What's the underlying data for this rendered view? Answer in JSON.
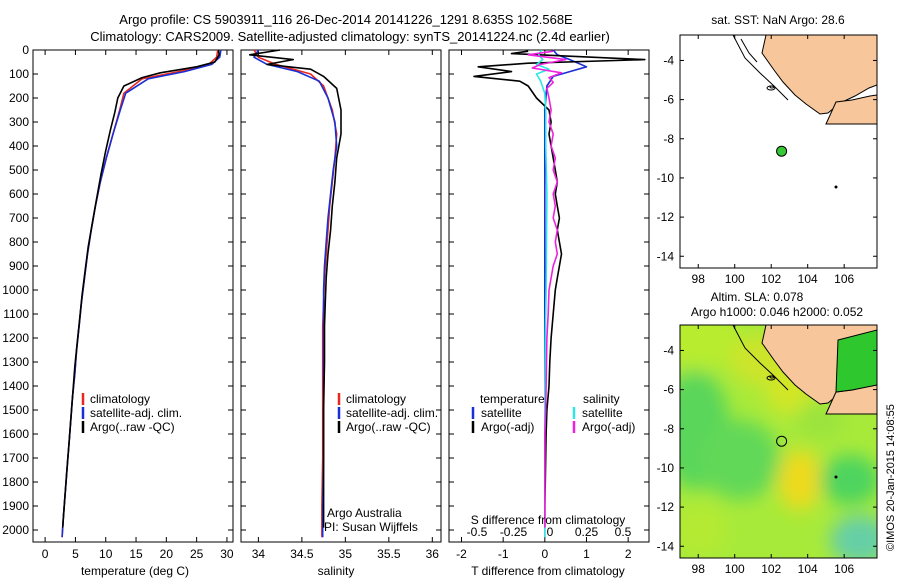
{
  "header": {
    "line1": "Argo profile: CS 5903911_116 26-Dec-2014 20141226_1291 8.635S 102.568E",
    "line2": "Climatology: CARS2009. Satellite-adjusted climatology: synTS_20141224.nc (2.4d earlier)"
  },
  "colors": {
    "climatology": "#e8281e",
    "satellite": "#1a2fd6",
    "argo": "#000000",
    "sat_salinity": "#2ee6e6",
    "argo_salinity": "#ee22dd",
    "land": "#f7c79b",
    "argo_dot": "#36c836"
  },
  "chart_data": [
    {
      "id": "temperature",
      "type": "line",
      "xlabel": "temperature (deg C)",
      "ylabel": "",
      "xlim": [
        -2,
        31
      ],
      "ylim": [
        2050,
        0
      ],
      "xticks": [
        0,
        5,
        10,
        15,
        20,
        25,
        30
      ],
      "yticks": [
        0,
        100,
        200,
        300,
        400,
        500,
        600,
        700,
        800,
        900,
        1000,
        1100,
        1200,
        1300,
        1400,
        1500,
        1600,
        1700,
        1800,
        1900,
        2000
      ],
      "legend": [
        "climatology",
        "satellite-adj. clim.",
        "Argo(..raw -QC)"
      ],
      "series": [
        {
          "name": "climatology",
          "color": "#e8281e",
          "points": [
            [
              28.5,
              0
            ],
            [
              28.3,
              30
            ],
            [
              27,
              60
            ],
            [
              22,
              90
            ],
            [
              16,
              120
            ],
            [
              13,
              180
            ],
            [
              12.3,
              250
            ],
            [
              11.2,
              350
            ],
            [
              10.1,
              450
            ],
            [
              9.1,
              550
            ],
            [
              8.3,
              650
            ],
            [
              7.6,
              750
            ],
            [
              7,
              850
            ],
            [
              6.5,
              950
            ],
            [
              6,
              1050
            ],
            [
              5.6,
              1150
            ],
            [
              5.2,
              1250
            ],
            [
              4.9,
              1350
            ],
            [
              4.5,
              1450
            ],
            [
              4.2,
              1550
            ],
            [
              3.9,
              1650
            ],
            [
              3.6,
              1750
            ],
            [
              3.3,
              1850
            ],
            [
              3.0,
              1950
            ],
            [
              2.8,
              2030
            ]
          ]
        },
        {
          "name": "satellite-adj. clim.",
          "color": "#1a2fd6",
          "points": [
            [
              29,
              0
            ],
            [
              28.8,
              30
            ],
            [
              27.5,
              60
            ],
            [
              23,
              90
            ],
            [
              17,
              120
            ],
            [
              13.3,
              180
            ],
            [
              12.4,
              250
            ],
            [
              11.2,
              350
            ],
            [
              10.1,
              450
            ],
            [
              9.1,
              550
            ],
            [
              8.3,
              650
            ],
            [
              7.6,
              750
            ],
            [
              7,
              850
            ],
            [
              6.5,
              950
            ],
            [
              6,
              1050
            ],
            [
              5.6,
              1150
            ],
            [
              5.2,
              1250
            ],
            [
              4.9,
              1350
            ],
            [
              4.5,
              1450
            ],
            [
              4.2,
              1550
            ],
            [
              3.9,
              1650
            ],
            [
              3.6,
              1750
            ],
            [
              3.3,
              1850
            ],
            [
              3.0,
              1950
            ],
            [
              2.8,
              2030
            ]
          ]
        },
        {
          "name": "Argo(..raw -QC)",
          "color": "#000000",
          "points": [
            [
              28.6,
              0
            ],
            [
              28.7,
              20
            ],
            [
              28,
              50
            ],
            [
              25,
              70
            ],
            [
              19,
              95
            ],
            [
              16,
              115
            ],
            [
              13,
              150
            ],
            [
              12,
              200
            ],
            [
              11.5,
              260
            ],
            [
              10.8,
              330
            ],
            [
              10,
              420
            ],
            [
              9.2,
              520
            ],
            [
              8.5,
              620
            ],
            [
              7.8,
              720
            ],
            [
              7.1,
              820
            ],
            [
              6.6,
              920
            ],
            [
              6.1,
              1020
            ],
            [
              5.7,
              1120
            ],
            [
              5.3,
              1220
            ],
            [
              4.9,
              1320
            ],
            [
              4.6,
              1420
            ],
            [
              4.3,
              1520
            ],
            [
              4,
              1620
            ],
            [
              3.7,
              1720
            ],
            [
              3.4,
              1820
            ],
            [
              3.1,
              1920
            ],
            [
              2.9,
              1990
            ]
          ]
        }
      ]
    },
    {
      "id": "salinity",
      "type": "line",
      "xlabel": "salinity",
      "xlim": [
        33.8,
        36.1
      ],
      "ylim": [
        2050,
        0
      ],
      "xticks": [
        34,
        34.5,
        35,
        35.5,
        36
      ],
      "legend": [
        "climatology",
        "satellite-adj. clim.",
        "Argo(..raw -QC)"
      ],
      "annotations": [
        "Argo Australia",
        "PI: Susan Wijffels"
      ],
      "series": [
        {
          "name": "climatology",
          "color": "#e8281e",
          "points": [
            [
              33.95,
              0
            ],
            [
              34.0,
              30
            ],
            [
              34.2,
              60
            ],
            [
              34.6,
              100
            ],
            [
              34.75,
              150
            ],
            [
              34.85,
              250
            ],
            [
              34.9,
              350
            ],
            [
              34.88,
              450
            ],
            [
              34.85,
              550
            ],
            [
              34.82,
              650
            ],
            [
              34.8,
              750
            ],
            [
              34.78,
              850
            ],
            [
              34.76,
              950
            ],
            [
              34.75,
              1050
            ],
            [
              34.74,
              1150
            ],
            [
              34.74,
              1300
            ],
            [
              34.74,
              1500
            ],
            [
              34.74,
              1700
            ],
            [
              34.73,
              1900
            ],
            [
              34.73,
              2030
            ]
          ]
        },
        {
          "name": "satellite-adj. clim.",
          "color": "#1a2fd6",
          "points": [
            [
              34.0,
              0
            ],
            [
              33.95,
              30
            ],
            [
              34.1,
              60
            ],
            [
              34.45,
              90
            ],
            [
              34.7,
              130
            ],
            [
              34.8,
              200
            ],
            [
              34.88,
              300
            ],
            [
              34.9,
              400
            ],
            [
              34.86,
              500
            ],
            [
              34.83,
              600
            ],
            [
              34.8,
              700
            ],
            [
              34.78,
              800
            ],
            [
              34.76,
              900
            ],
            [
              34.75,
              1000
            ],
            [
              34.75,
              1100
            ],
            [
              34.75,
              1300
            ],
            [
              34.75,
              1500
            ],
            [
              34.75,
              1700
            ],
            [
              34.74,
              1900
            ],
            [
              34.74,
              2030
            ]
          ]
        },
        {
          "name": "Argo(..raw -QC)",
          "color": "#000000",
          "points": [
            [
              34.25,
              0
            ],
            [
              33.9,
              20
            ],
            [
              34.4,
              40
            ],
            [
              34.1,
              60
            ],
            [
              34.6,
              80
            ],
            [
              34.75,
              110
            ],
            [
              34.9,
              160
            ],
            [
              34.95,
              250
            ],
            [
              34.95,
              350
            ],
            [
              34.9,
              450
            ],
            [
              34.88,
              550
            ],
            [
              34.85,
              650
            ],
            [
              34.83,
              750
            ],
            [
              34.8,
              850
            ],
            [
              34.78,
              950
            ],
            [
              34.77,
              1050
            ],
            [
              34.76,
              1150
            ],
            [
              34.76,
              1300
            ],
            [
              34.75,
              1500
            ],
            [
              34.75,
              1700
            ],
            [
              34.75,
              1900
            ],
            [
              34.75,
              1990
            ]
          ]
        }
      ]
    },
    {
      "id": "difference",
      "type": "line",
      "xlabel": "T difference from climatology",
      "top_label": "S difference from climatology",
      "xlim": [
        -2.3,
        2.5
      ],
      "ylim": [
        2050,
        0
      ],
      "xticks": [
        -2,
        -1,
        0,
        1,
        2
      ],
      "top_ticks": [
        "-0.5",
        "-0.25",
        "0",
        "0.25",
        "0.5"
      ],
      "legend_left": [
        "temperature",
        "satellite",
        "Argo(-adj)"
      ],
      "legend_right": [
        "salinity",
        "satellite",
        "Argo(-adj)"
      ],
      "series": [
        {
          "name": "T satellite",
          "color": "#1a2fd6",
          "points": [
            [
              0.2,
              0
            ],
            [
              0.3,
              20
            ],
            [
              0.6,
              40
            ],
            [
              1.0,
              70
            ],
            [
              0.6,
              90
            ],
            [
              0.2,
              110
            ],
            [
              0.05,
              150
            ],
            [
              0,
              250
            ],
            [
              0,
              2030
            ]
          ]
        },
        {
          "name": "T Argo",
          "color": "#000000",
          "points": [
            [
              -0.4,
              5
            ],
            [
              -0.8,
              15
            ],
            [
              2.4,
              40
            ],
            [
              -0.4,
              55
            ],
            [
              -1.6,
              70
            ],
            [
              -0.8,
              90
            ],
            [
              -1.7,
              110
            ],
            [
              -0.6,
              130
            ],
            [
              -0.4,
              150
            ],
            [
              -0.2,
              200
            ],
            [
              0.1,
              250
            ],
            [
              0.15,
              300
            ],
            [
              0.1,
              350
            ],
            [
              0.15,
              400
            ],
            [
              0.2,
              450
            ],
            [
              0.25,
              500
            ],
            [
              0.3,
              550
            ],
            [
              0.25,
              600
            ],
            [
              0.3,
              650
            ],
            [
              0.35,
              700
            ],
            [
              0.3,
              750
            ],
            [
              0.35,
              800
            ],
            [
              0.4,
              850
            ],
            [
              0.35,
              900
            ],
            [
              0.3,
              950
            ],
            [
              0.25,
              1000
            ],
            [
              0.2,
              1100
            ],
            [
              0.15,
              1200
            ],
            [
              0.12,
              1300
            ],
            [
              0.1,
              1400
            ],
            [
              0.05,
              1500
            ],
            [
              0.03,
              1600
            ],
            [
              0.02,
              1700
            ],
            [
              0.01,
              1800
            ],
            [
              0,
              1900
            ],
            [
              0,
              1990
            ]
          ]
        },
        {
          "name": "S satellite",
          "color": "#2ee6e6",
          "points": [
            [
              -0.08,
              0
            ],
            [
              -0.15,
              20
            ],
            [
              -0.05,
              40
            ],
            [
              -0.2,
              60
            ],
            [
              0.1,
              80
            ],
            [
              -0.2,
              100
            ],
            [
              -0.1,
              130
            ],
            [
              0,
              180
            ],
            [
              0.02,
              250
            ],
            [
              0.02,
              400
            ],
            [
              0.05,
              600
            ],
            [
              0.04,
              800
            ],
            [
              0.03,
              1000
            ],
            [
              0.01,
              1200
            ],
            [
              0,
              1400
            ],
            [
              0,
              2030
            ]
          ]
        },
        {
          "name": "S Argo",
          "color": "#ee22dd",
          "points": [
            [
              0.2,
              5
            ],
            [
              -0.4,
              20
            ],
            [
              0.5,
              40
            ],
            [
              -0.1,
              60
            ],
            [
              -0.3,
              75
            ],
            [
              0.4,
              95
            ],
            [
              0.1,
              115
            ],
            [
              0.2,
              135
            ],
            [
              0.05,
              160
            ],
            [
              0.1,
              200
            ],
            [
              0.15,
              250
            ],
            [
              0.1,
              300
            ],
            [
              0.2,
              350
            ],
            [
              0.15,
              400
            ],
            [
              0.25,
              450
            ],
            [
              0.2,
              500
            ],
            [
              0.3,
              550
            ],
            [
              0.2,
              600
            ],
            [
              0.25,
              650
            ],
            [
              0.2,
              700
            ],
            [
              0.3,
              750
            ],
            [
              0.25,
              800
            ],
            [
              0.3,
              850
            ],
            [
              0.2,
              900
            ],
            [
              0.15,
              950
            ],
            [
              0.1,
              1000
            ],
            [
              0.08,
              1100
            ],
            [
              0.05,
              1200
            ],
            [
              0.04,
              1300
            ],
            [
              0.03,
              1400
            ],
            [
              0.02,
              1500
            ],
            [
              0,
              1600
            ],
            [
              0,
              1990
            ]
          ]
        }
      ]
    }
  ],
  "map_top": {
    "title": "sat. SST: NaN Argo: 28.6",
    "xticks": [
      98,
      100,
      102,
      104,
      106
    ],
    "yticks": [
      -4,
      -6,
      -8,
      -10,
      -12,
      -14
    ],
    "lon_range": [
      97,
      107.8
    ],
    "lat_range": [
      -14.6,
      -2.7
    ],
    "argo_position": [
      102.568,
      -8.635
    ]
  },
  "map_bottom": {
    "title1": "Altim. SLA: 0.078",
    "title2": "Argo h1000: 0.046 h2000: 0.052",
    "xticks": [
      98,
      100,
      102,
      104,
      106
    ],
    "yticks": [
      -4,
      -6,
      -8,
      -10,
      -12,
      -14
    ],
    "lon_range": [
      97,
      107.8
    ],
    "lat_range": [
      -14.6,
      -2.7
    ],
    "argo_position": [
      102.568,
      -8.635
    ]
  },
  "credit": "©IMOS 20-Jan-2015 14:08:55"
}
